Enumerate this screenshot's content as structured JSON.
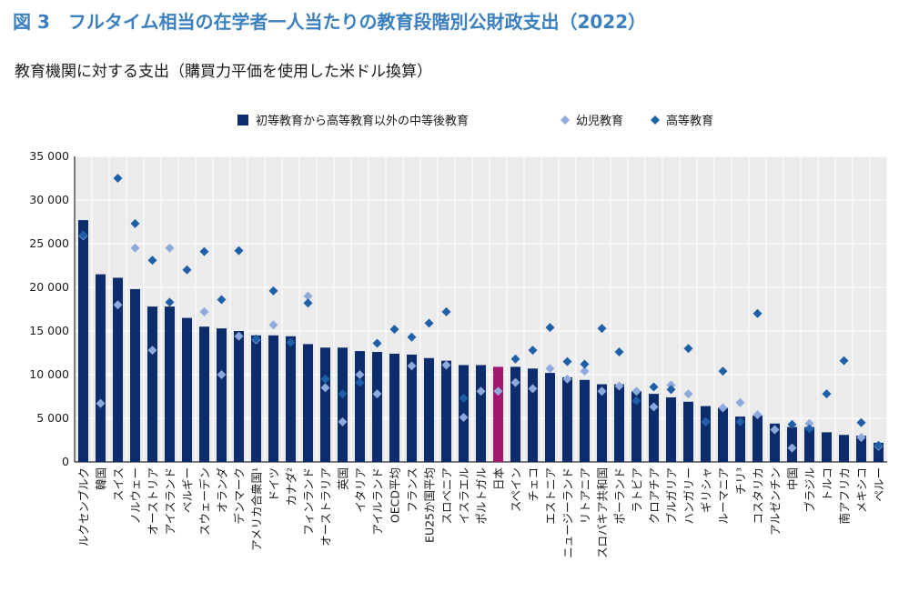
{
  "figure": {
    "title": "図 3　フルタイム相当の在学者一人当たりの教育段階別公財政支出（2022）",
    "subtitle": "教育機関に対する支出（購買力平価を使用した米ドル換算）"
  },
  "chart_data": {
    "type": "bar",
    "title": "図 3　フルタイム相当の在学者一人当たりの教育段階別公財政支出（2022）",
    "subtitle": "教育機関に対する支出（購買力平価を使用した米ドル換算）",
    "xlabel": "",
    "ylabel": "",
    "ylim": [
      0,
      35000
    ],
    "yticks": [
      0,
      5000,
      10000,
      15000,
      20000,
      25000,
      30000,
      35000
    ],
    "ytick_labels": [
      "0",
      "5 000",
      "10 000",
      "15 000",
      "20 000",
      "25 000",
      "30 000",
      "35 000"
    ],
    "grid": true,
    "legend_position": "top-center",
    "colors": {
      "bar": "#0d2c6b",
      "highlight_bar": "#a3186f",
      "early_childhood": "#8ea9dc",
      "tertiary": "#1f5fa8",
      "grid": "#ffffff",
      "plot_bg": "#ebebeb"
    },
    "highlight_category": "日本",
    "categories": [
      "ルクセンブルク",
      "韓国",
      "スイス",
      "ノルウェー",
      "オーストリア",
      "アイスランド",
      "ベルギー",
      "スウェーデン",
      "オランダ",
      "デンマーク",
      "アメリカ合衆国¹",
      "ドイツ",
      "カナダ²",
      "フィンランド",
      "オーストラリア",
      "英国",
      "イタリア",
      "アイルランド",
      "OECD平均",
      "フランス",
      "EU25か国平均",
      "スロベニア",
      "イスラエル",
      "ポルトガル",
      "日本",
      "スペイン",
      "チェコ",
      "エストニア",
      "ニュージーランド",
      "リトアニア",
      "スロバキア共和国",
      "ポーランド",
      "ラトビア",
      "クロアチア",
      "ブルガリア",
      "ハンガリー",
      "ギリシャ",
      "ルーマニア",
      "チリ³",
      "コスタリカ",
      "アルゼンチン",
      "中国",
      "ブラジル",
      "トルコ",
      "南アフリカ",
      "メキシコ",
      "ペルー"
    ],
    "series": [
      {
        "name": "初等教育から高等教育以外の中等後教育",
        "kind": "bar",
        "values": [
          27700,
          21500,
          21100,
          19800,
          17800,
          17800,
          16500,
          15500,
          15300,
          15000,
          14500,
          14500,
          14400,
          13500,
          13100,
          13100,
          12700,
          12600,
          12400,
          12300,
          11900,
          11600,
          11100,
          11100,
          10900,
          10900,
          10700,
          10200,
          9700,
          9400,
          8900,
          8900,
          8100,
          7800,
          7400,
          6900,
          6400,
          6200,
          5200,
          5300,
          4400,
          4000,
          4000,
          3400,
          3100,
          3000,
          2200
        ]
      },
      {
        "name": "幼児教育",
        "kind": "marker",
        "values": [
          25900,
          6700,
          18000,
          24500,
          12800,
          24500,
          null,
          17200,
          10000,
          14400,
          14000,
          15700,
          null,
          19000,
          8500,
          4600,
          10000,
          7800,
          null,
          11000,
          null,
          11100,
          5100,
          8100,
          8100,
          9100,
          8400,
          10700,
          9500,
          10400,
          8100,
          8700,
          8100,
          6300,
          8800,
          7800,
          4600,
          6200,
          6800,
          5400,
          3700,
          1600,
          4400,
          null,
          null,
          2800,
          1800
        ]
      },
      {
        "name": "高等教育",
        "kind": "marker",
        "values": [
          26000,
          null,
          32500,
          27300,
          23100,
          18300,
          22000,
          24100,
          18600,
          24200,
          14100,
          19600,
          13700,
          18200,
          9500,
          7800,
          9100,
          13600,
          15200,
          14300,
          15900,
          17200,
          7300,
          null,
          null,
          11800,
          12800,
          15400,
          11500,
          11200,
          15300,
          12600,
          7000,
          8600,
          8300,
          13000,
          4600,
          10400,
          4600,
          17000,
          null,
          4300,
          3800,
          7800,
          11600,
          4500,
          1900
        ]
      }
    ]
  }
}
